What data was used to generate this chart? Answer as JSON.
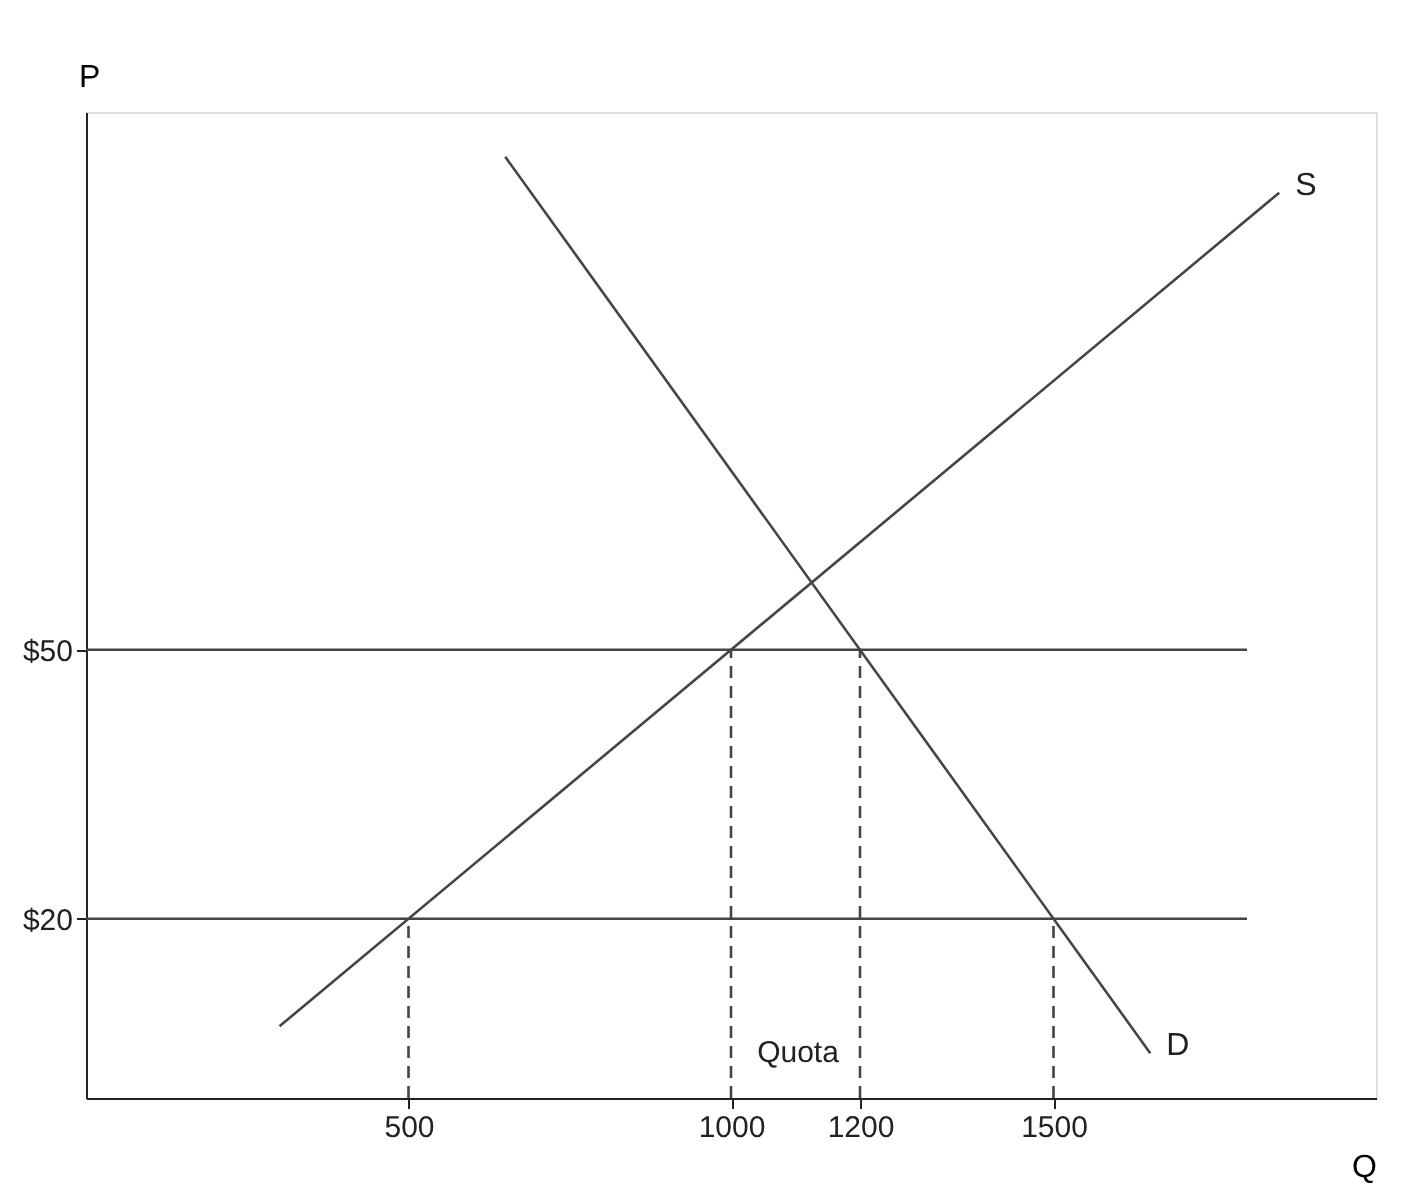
{
  "chart_data": {
    "type": "line",
    "xlabel": "Q",
    "ylabel": "P",
    "xlim": [
      0,
      2000
    ],
    "ylim": [
      0,
      110
    ],
    "xticks": [
      500,
      1000,
      1200,
      1500
    ],
    "yticks": [
      {
        "value": 20,
        "label": "$20"
      },
      {
        "value": 50,
        "label": "$50"
      }
    ],
    "grid": false,
    "marker": "none",
    "series": [
      {
        "name": "S",
        "color": "#444444",
        "x": [
          300,
          1850
        ],
        "values": [
          8,
          101
        ]
      },
      {
        "name": "D",
        "color": "#444444",
        "x": [
          650,
          1650
        ],
        "values": [
          105,
          5
        ]
      },
      {
        "color": "#444444",
        "x": [
          0,
          1800
        ],
        "values": [
          50,
          50
        ]
      },
      {
        "color": "#444444",
        "x": [
          0,
          1800
        ],
        "values": [
          20,
          20
        ]
      },
      {
        "color": "#444444",
        "line_style": "dashed",
        "x": [
          500,
          500
        ],
        "values": [
          0,
          20
        ]
      },
      {
        "color": "#444444",
        "line_style": "dashed",
        "x": [
          1000,
          1000
        ],
        "values": [
          0,
          50
        ]
      },
      {
        "color": "#444444",
        "line_style": "dashed",
        "x": [
          1200,
          1200
        ],
        "values": [
          0,
          50
        ]
      },
      {
        "color": "#444444",
        "line_style": "dashed",
        "x": [
          1500,
          1500
        ],
        "values": [
          0,
          20
        ]
      }
    ],
    "annotations": [
      "Quota"
    ]
  }
}
